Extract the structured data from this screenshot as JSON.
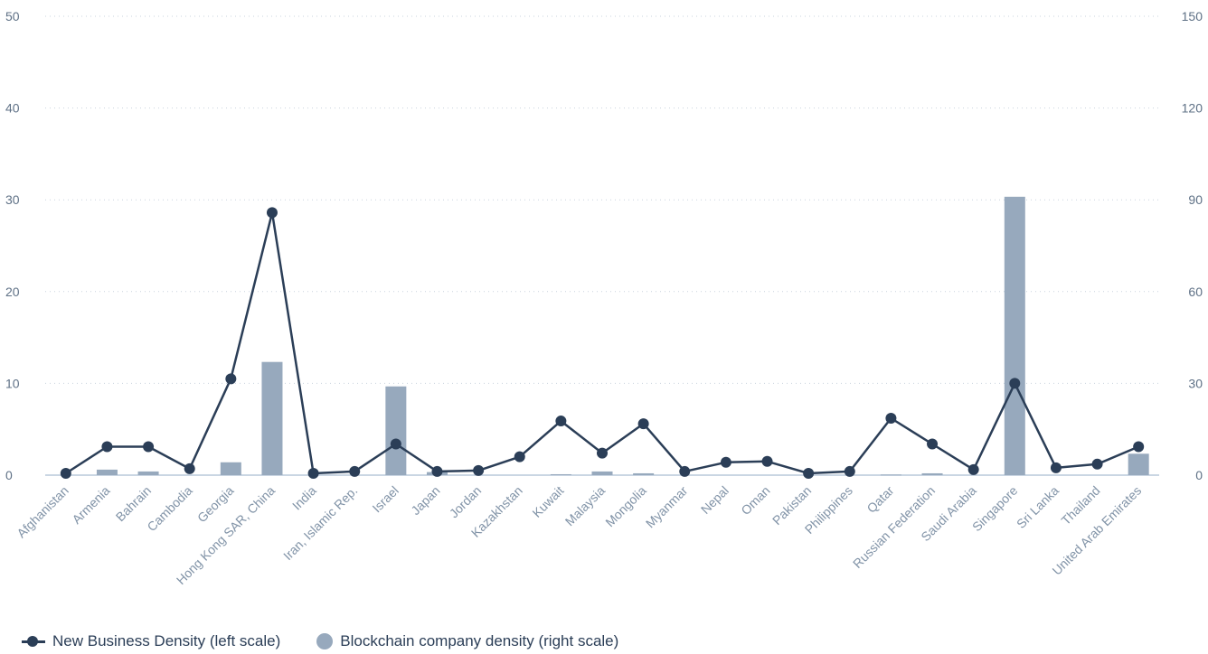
{
  "chart_data": {
    "type": "bar",
    "categories": [
      "Afghanistan",
      "Armenia",
      "Bahrain",
      "Cambodia",
      "Georgia",
      "Hong Kong SAR, China",
      "India",
      "Iran, Islamic Rep.",
      "Israel",
      "Japan",
      "Jordan",
      "Kazakhstan",
      "Kuwait",
      "Malaysia",
      "Mongolia",
      "Myanmar",
      "Nepal",
      "Oman",
      "Pakistan",
      "Philippines",
      "Qatar",
      "Russian Federation",
      "Saudi Arabia",
      "Singapore",
      "Sri Lanka",
      "Thailand",
      "United Arab Emirates"
    ],
    "series": [
      {
        "name": "New Business Density (left scale)",
        "type": "line",
        "axis": "left",
        "color": "#2b3e57",
        "values": [
          0.2,
          3.1,
          3.1,
          0.7,
          10.5,
          28.6,
          0.2,
          0.4,
          3.4,
          0.4,
          0.5,
          2.0,
          5.9,
          2.4,
          5.6,
          0.4,
          1.4,
          1.5,
          0.2,
          0.4,
          6.2,
          3.4,
          0.6,
          10.0,
          0.8,
          1.2,
          3.1
        ]
      },
      {
        "name": "Blockchain company density (right scale)",
        "type": "bar",
        "axis": "right",
        "color": "#97a9bd",
        "values": [
          0,
          1.8,
          1.2,
          0,
          4.2,
          37,
          0,
          0,
          29,
          1.0,
          0,
          0,
          0.3,
          1.2,
          0.6,
          0,
          0,
          0,
          0,
          0,
          0.2,
          0.6,
          0,
          91,
          0,
          0,
          7
        ]
      }
    ],
    "yleft": {
      "ticks": [
        "0",
        "10",
        "20",
        "30",
        "40",
        "50"
      ],
      "lim": [
        0,
        50
      ]
    },
    "yright": {
      "ticks": [
        "0",
        "30",
        "60",
        "90",
        "120",
        "150"
      ],
      "lim": [
        0,
        150
      ]
    },
    "grid": true,
    "legend_position": "bottom-left"
  },
  "legend": {
    "line_label": "New Business Density (left scale)",
    "bar_label": "Blockchain company density (right scale)"
  }
}
